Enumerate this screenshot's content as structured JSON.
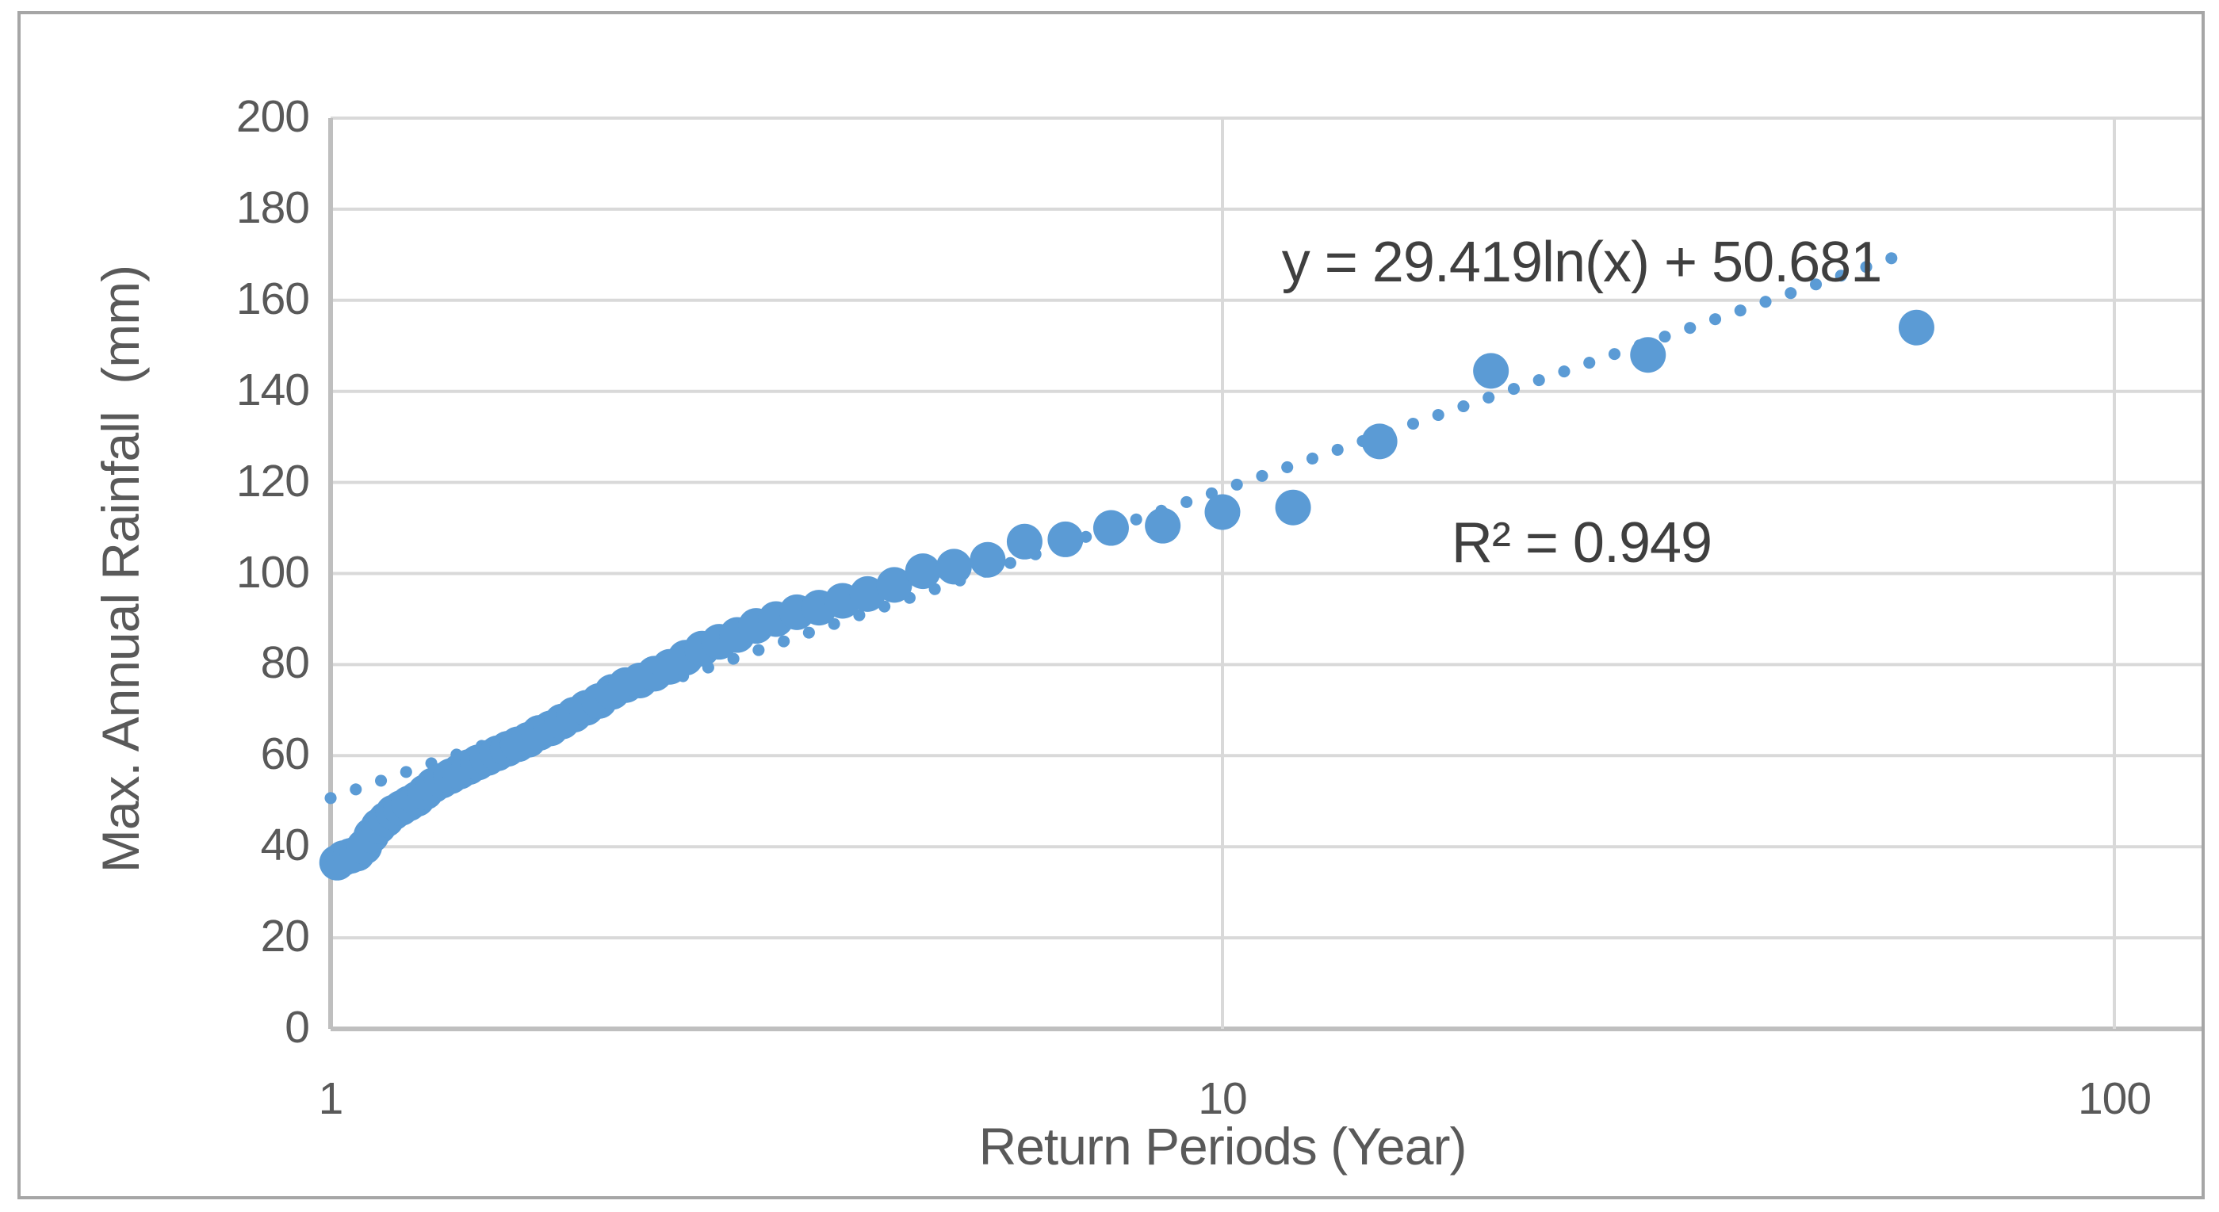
{
  "style": {
    "accent": "#5B9BD5",
    "gridline": "#D9D9D9",
    "axis_line": "#BFBFBF",
    "tick_text": "#595959",
    "equation_text": "#3F3F3F",
    "frame_border": "#A6A6A6",
    "background": "#FFFFFF"
  },
  "chart_data": {
    "type": "scatter",
    "title": "",
    "xlabel": "Return Periods (Year)",
    "ylabel": "Max. Annual Rainfall  (mm)",
    "x_scale": "log10",
    "xlim": [
      1,
      100
    ],
    "ylim": [
      0,
      200
    ],
    "x_ticks": [
      1,
      10,
      100
    ],
    "x_tick_labels": [
      "1",
      "10",
      "100"
    ],
    "y_ticks": [
      0,
      20,
      40,
      60,
      80,
      100,
      120,
      140,
      160,
      180,
      200
    ],
    "grid": true,
    "legend": "none",
    "annotation": {
      "line1": "y = 29.419ln(x) + 50.681",
      "line2": "R² = 0.949"
    },
    "trendline": {
      "type": "logarithmic",
      "a": 29.419,
      "b": 50.681,
      "r_squared": 0.949,
      "x_start": 1,
      "x_end": 60,
      "style": "dotted"
    },
    "series": [
      {
        "name": "Max. Annual Rainfall",
        "marker": "circle",
        "points": [
          [
            1.017,
            36.5
          ],
          [
            1.034,
            37.5
          ],
          [
            1.053,
            38
          ],
          [
            1.071,
            38.5
          ],
          [
            1.091,
            40
          ],
          [
            1.111,
            42.5
          ],
          [
            1.132,
            44.5
          ],
          [
            1.154,
            46
          ],
          [
            1.176,
            47.5
          ],
          [
            1.2,
            48.5
          ],
          [
            1.224,
            49.5
          ],
          [
            1.25,
            50.5
          ],
          [
            1.277,
            52
          ],
          [
            1.304,
            53.5
          ],
          [
            1.333,
            54.5
          ],
          [
            1.364,
            55.5
          ],
          [
            1.395,
            56.5
          ],
          [
            1.429,
            57.5
          ],
          [
            1.463,
            58.5
          ],
          [
            1.5,
            59.5
          ],
          [
            1.538,
            60.5
          ],
          [
            1.579,
            61.5
          ],
          [
            1.622,
            62.5
          ],
          [
            1.667,
            63.5
          ],
          [
            1.714,
            65
          ],
          [
            1.765,
            66
          ],
          [
            1.818,
            67.5
          ],
          [
            1.875,
            69
          ],
          [
            1.935,
            70.5
          ],
          [
            2.0,
            72
          ],
          [
            2.069,
            74
          ],
          [
            2.143,
            75.5
          ],
          [
            2.222,
            76.5
          ],
          [
            2.308,
            78
          ],
          [
            2.4,
            79.5
          ],
          [
            2.5,
            81.5
          ],
          [
            2.609,
            83.5
          ],
          [
            2.727,
            85
          ],
          [
            2.857,
            86.5
          ],
          [
            3.0,
            88.5
          ],
          [
            3.158,
            90
          ],
          [
            3.333,
            91.5
          ],
          [
            3.529,
            92.5
          ],
          [
            3.75,
            94
          ],
          [
            4.0,
            95.5
          ],
          [
            4.286,
            97.5
          ],
          [
            4.615,
            100.5
          ],
          [
            5.0,
            101.5
          ],
          [
            5.455,
            103
          ],
          [
            6.0,
            107
          ],
          [
            6.667,
            107.5
          ],
          [
            7.5,
            110
          ],
          [
            8.571,
            110.5
          ],
          [
            10.0,
            113.5
          ],
          [
            12.0,
            114.5
          ],
          [
            15.0,
            129
          ],
          [
            20.0,
            144.5
          ],
          [
            30.0,
            148
          ],
          [
            60.0,
            154
          ]
        ]
      }
    ]
  }
}
